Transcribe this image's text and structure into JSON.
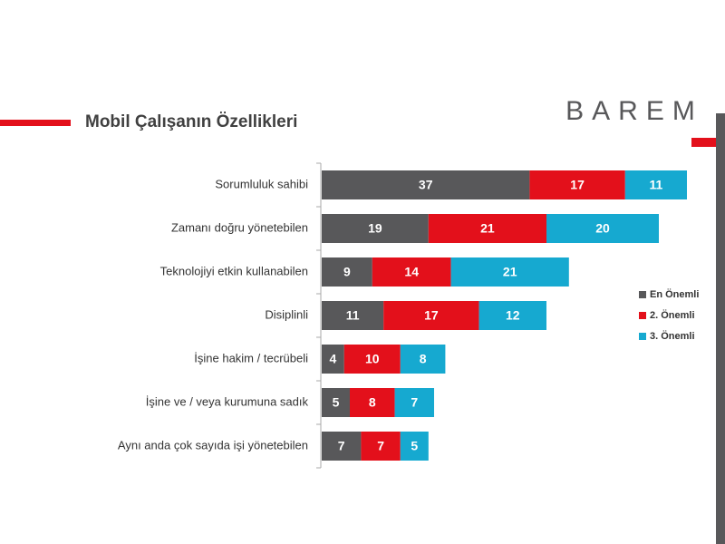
{
  "logo": "BAREM",
  "chart_data": {
    "type": "bar",
    "orientation": "horizontal",
    "stacked": true,
    "title": "Mobil Çalışanın Özellikleri",
    "categories": [
      "Sorumluluk sahibi",
      "Zamanı doğru yönetebilen",
      "Teknolojiyi etkin kullanabilen",
      "Disiplinli",
      "İşine hakim / tecrübeli",
      "İşine ve / veya kurumuna sadık",
      "Aynı anda çok sayıda işi yönetebilen"
    ],
    "series": [
      {
        "name": "En Önemli",
        "color": "#58585a",
        "values": [
          37,
          19,
          9,
          11,
          4,
          5,
          7
        ]
      },
      {
        "name": "2. Önemli",
        "color": "#e3101b",
        "values": [
          17,
          21,
          14,
          17,
          10,
          8,
          7
        ]
      },
      {
        "name": "3. Önemli",
        "color": "#16a9d0",
        "values": [
          11,
          20,
          21,
          12,
          8,
          7,
          5
        ]
      }
    ],
    "legend": "right"
  }
}
